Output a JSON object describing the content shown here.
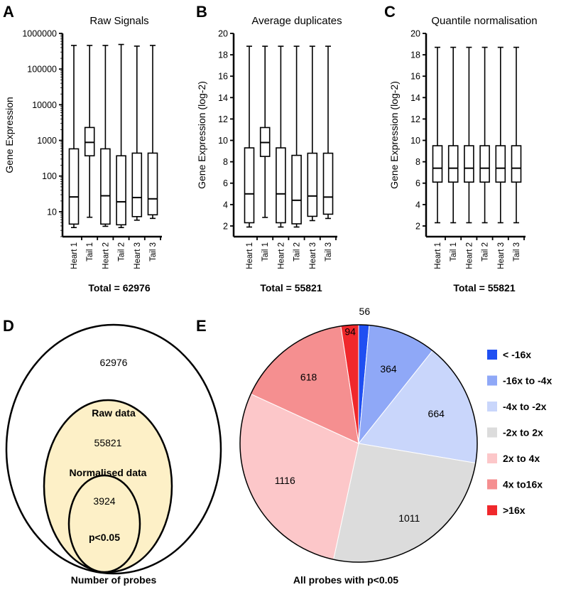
{
  "chart_data": [
    {
      "panel": "A",
      "type": "box",
      "title": "Raw Signals",
      "ylabel": "Gene Expression",
      "yscale": "log",
      "ylim": [
        2,
        1000000
      ],
      "yticks": [
        10,
        100,
        1000,
        10000,
        100000,
        1000000
      ],
      "ytick_labels": [
        "10",
        "100",
        "1000",
        "10000",
        "100000",
        "1000000"
      ],
      "categories": [
        "Heart 1",
        "Tail 1",
        "Heart 2",
        "Tail 2",
        "Heart 3",
        "Tail 3"
      ],
      "boxes": [
        {
          "min": 3.6,
          "q1": 4.5,
          "median": 26,
          "q3": 580,
          "max": 460000
        },
        {
          "min": 7,
          "q1": 370,
          "median": 880,
          "q3": 2300,
          "max": 460000
        },
        {
          "min": 3.9,
          "q1": 4.5,
          "median": 28,
          "q3": 580,
          "max": 460000
        },
        {
          "min": 3.6,
          "q1": 4.3,
          "median": 19,
          "q3": 370,
          "max": 490000
        },
        {
          "min": 5.8,
          "q1": 7.3,
          "median": 25,
          "q3": 440,
          "max": 440000
        },
        {
          "min": 6.5,
          "q1": 8.2,
          "median": 23,
          "q3": 440,
          "max": 460000
        }
      ],
      "total_label": "Total = 62976"
    },
    {
      "panel": "B",
      "type": "box",
      "title": "Average duplicates",
      "ylabel": "Gene Expression (log-2)",
      "yscale": "linear",
      "ylim": [
        1,
        20
      ],
      "yticks": [
        2,
        4,
        6,
        8,
        10,
        12,
        14,
        16,
        18,
        20
      ],
      "ytick_labels": [
        "2",
        "4",
        "6",
        "8",
        "10",
        "12",
        "14",
        "16",
        "18",
        "20"
      ],
      "categories": [
        "Heart 1",
        "Tail 1",
        "Heart 2",
        "Tail 2",
        "Heart 3",
        "Tail 3"
      ],
      "boxes": [
        {
          "min": 1.9,
          "q1": 2.3,
          "median": 5.0,
          "q3": 9.3,
          "max": 18.8
        },
        {
          "min": 2.8,
          "q1": 8.5,
          "median": 9.8,
          "q3": 11.2,
          "max": 18.8
        },
        {
          "min": 1.9,
          "q1": 2.3,
          "median": 5.0,
          "q3": 9.3,
          "max": 18.8
        },
        {
          "min": 1.9,
          "q1": 2.2,
          "median": 4.4,
          "q3": 8.6,
          "max": 18.8
        },
        {
          "min": 2.5,
          "q1": 2.9,
          "median": 4.8,
          "q3": 8.8,
          "max": 18.8
        },
        {
          "min": 2.7,
          "q1": 3.1,
          "median": 4.7,
          "q3": 8.8,
          "max": 18.8
        }
      ],
      "total_label": "Total = 55821"
    },
    {
      "panel": "C",
      "type": "box",
      "title": "Quantile normalisation",
      "ylabel": "Gene Expression (log-2)",
      "yscale": "linear",
      "ylim": [
        1,
        20
      ],
      "yticks": [
        2,
        4,
        6,
        8,
        10,
        12,
        14,
        16,
        18,
        20
      ],
      "ytick_labels": [
        "2",
        "4",
        "6",
        "8",
        "10",
        "12",
        "14",
        "16",
        "18",
        "20"
      ],
      "categories": [
        "Heart 1",
        "Tail 1",
        "Heart 2",
        "Tail 2",
        "Heart 3",
        "Tail 3"
      ],
      "boxes": [
        {
          "min": 2.3,
          "q1": 6.1,
          "median": 7.4,
          "q3": 9.5,
          "max": 18.7
        },
        {
          "min": 2.3,
          "q1": 6.1,
          "median": 7.4,
          "q3": 9.5,
          "max": 18.7
        },
        {
          "min": 2.3,
          "q1": 6.1,
          "median": 7.4,
          "q3": 9.5,
          "max": 18.7
        },
        {
          "min": 2.3,
          "q1": 6.1,
          "median": 7.4,
          "q3": 9.5,
          "max": 18.7
        },
        {
          "min": 2.3,
          "q1": 6.1,
          "median": 7.4,
          "q3": 9.5,
          "max": 18.7
        },
        {
          "min": 2.3,
          "q1": 6.1,
          "median": 7.4,
          "q3": 9.5,
          "max": 18.7
        }
      ],
      "total_label": "Total = 55821"
    },
    {
      "panel": "E",
      "type": "pie",
      "caption": "All probes with p<0.05",
      "slices": [
        {
          "label": "< -16x",
          "value": 56,
          "color": "#1f4ff2"
        },
        {
          "label": "-16x to -4x",
          "value": 364,
          "color": "#8fa8f7"
        },
        {
          "label": "-4x to -2x",
          "value": 664,
          "color": "#c9d6fb"
        },
        {
          "label": "-2x to 2x",
          "value": 1011,
          "color": "#dcdcdc"
        },
        {
          "label": "2x to 4x",
          "value": 1116,
          "color": "#fcc7c9"
        },
        {
          "label": "4x to16x",
          "value": 618,
          "color": "#f58f90"
        },
        {
          "label": ">16x",
          "value": 94,
          "color": "#f0282c"
        }
      ]
    }
  ],
  "venn": {
    "panel": "D",
    "levels": [
      {
        "count": "62976",
        "label": "Raw data",
        "fill": "#ffffff"
      },
      {
        "count": "55821",
        "label": "Normalised data",
        "fill": "#fdf0c7"
      },
      {
        "count": "3924",
        "label": "p<0.05",
        "fill": "#fdf0c7"
      }
    ],
    "caption": "Number of probes"
  }
}
